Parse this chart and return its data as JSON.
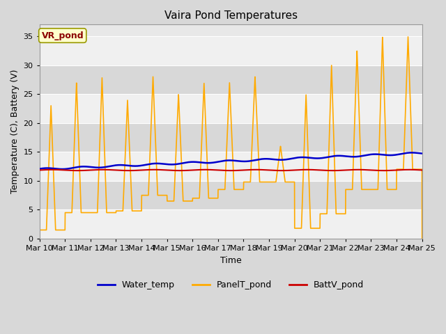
{
  "title": "Vaira Pond Temperatures",
  "xlabel": "Time",
  "ylabel": "Temperature (C), Battery (V)",
  "annotation": "VR_pond",
  "ylim": [
    0,
    37
  ],
  "yticks": [
    0,
    5,
    10,
    15,
    20,
    25,
    30,
    35
  ],
  "num_days": 15,
  "xtick_labels": [
    "Mar 10",
    "Mar 11",
    "Mar 12",
    "Mar 13",
    "Mar 14",
    "Mar 15",
    "Mar 16",
    "Mar 17",
    "Mar 18",
    "Mar 19",
    "Mar 20",
    "Mar 21",
    "Mar 22",
    "Mar 23",
    "Mar 24",
    "Mar 25"
  ],
  "water_temp_color": "#0000cc",
  "panel_temp_color": "#ffaa00",
  "batt_color": "#cc0000",
  "fig_bg_color": "#d8d8d8",
  "plot_bg_color": "#e8e8e8",
  "band_color_light": "#f0f0f0",
  "band_color_dark": "#d8d8d8",
  "legend_labels": [
    "Water_temp",
    "PanelT_pond",
    "BattV_pond"
  ],
  "grid_color": "#ffffff",
  "title_fontsize": 11,
  "tick_fontsize": 8,
  "label_fontsize": 9,
  "annot_fontsize": 9
}
